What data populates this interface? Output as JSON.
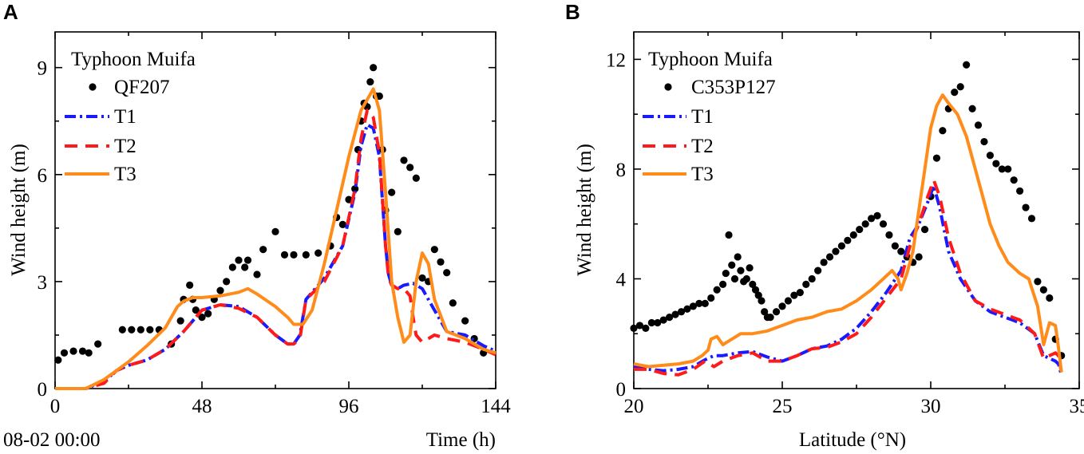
{
  "chart_data": [
    {
      "id": "A",
      "type": "line",
      "panel_label": "A",
      "legend_title": "Typhoon Muifa",
      "xlabel": "Time (h)",
      "ylabel": "Wind height (m)",
      "x_origin_label": "08-02 00:00",
      "xlim": [
        0,
        144
      ],
      "ylim": [
        0,
        10
      ],
      "xticks": [
        0,
        48,
        96,
        144
      ],
      "yticks": [
        0,
        3,
        6,
        9
      ],
      "legend_position": "top-left",
      "colors": {
        "obs": "#000000",
        "T1": "#1a1aff",
        "T2": "#ff1a1a",
        "T3": "#ff8c1a"
      },
      "observations": {
        "name": "QF207",
        "x": [
          1,
          3,
          6,
          9,
          11,
          14,
          22,
          25,
          28,
          31,
          34,
          38,
          41,
          42,
          44,
          45,
          46,
          48,
          50,
          52,
          54,
          56,
          58,
          60,
          62,
          63,
          66,
          68,
          72,
          75,
          78,
          82,
          86,
          90,
          92,
          94,
          96,
          98,
          99,
          100,
          101,
          102,
          103,
          104,
          105,
          106,
          107,
          108,
          110,
          112,
          114,
          116,
          118,
          120,
          122,
          124,
          126,
          128,
          130,
          134,
          137,
          140
        ],
        "y": [
          0.8,
          1.0,
          1.05,
          1.05,
          1.0,
          1.25,
          1.65,
          1.65,
          1.65,
          1.65,
          1.65,
          1.25,
          1.9,
          2.5,
          2.9,
          2.5,
          2.2,
          2.0,
          2.1,
          2.5,
          2.75,
          3.0,
          3.4,
          3.6,
          3.4,
          3.6,
          3.2,
          3.9,
          4.4,
          3.75,
          3.75,
          3.75,
          3.8,
          4.0,
          4.8,
          4.6,
          5.3,
          5.6,
          6.7,
          7.5,
          8.0,
          7.9,
          8.6,
          9.0,
          8.2,
          8.2,
          6.7,
          5.0,
          5.5,
          4.4,
          6.4,
          6.2,
          5.9,
          3.1,
          3.0,
          3.9,
          3.55,
          3.25,
          2.4,
          1.9,
          1.4,
          1.0
        ]
      },
      "series": [
        {
          "name": "T1",
          "style": "dash-dot",
          "x": [
            0,
            10,
            16,
            20,
            24,
            30,
            36,
            42,
            48,
            54,
            60,
            66,
            72,
            76,
            78,
            80,
            82,
            88,
            94,
            98,
            100,
            102,
            104,
            106,
            108,
            109,
            110,
            112,
            114,
            117,
            120,
            124,
            128,
            134,
            140,
            144
          ],
          "y": [
            0,
            0,
            0.2,
            0.5,
            0.65,
            0.8,
            1.1,
            1.6,
            2.2,
            2.35,
            2.3,
            2.0,
            1.5,
            1.25,
            1.25,
            1.5,
            2.5,
            3.1,
            4.0,
            5.5,
            6.8,
            7.4,
            7.3,
            6.5,
            4.0,
            3.2,
            2.9,
            2.8,
            2.9,
            2.95,
            2.8,
            2.2,
            1.6,
            1.5,
            1.2,
            1.05
          ]
        },
        {
          "name": "T2",
          "style": "dashed",
          "x": [
            0,
            10,
            16,
            20,
            24,
            30,
            36,
            42,
            48,
            54,
            60,
            66,
            72,
            76,
            78,
            80,
            82,
            88,
            94,
            98,
            100,
            102,
            104,
            106,
            108,
            109,
            110,
            112,
            114,
            116,
            117,
            118,
            120,
            124,
            128,
            134,
            140,
            144
          ],
          "y": [
            0,
            0,
            0.15,
            0.5,
            0.65,
            0.8,
            1.1,
            1.6,
            2.2,
            2.35,
            2.25,
            2.0,
            1.5,
            1.25,
            1.25,
            1.4,
            2.5,
            3.0,
            4.0,
            5.6,
            7.0,
            7.8,
            7.6,
            6.6,
            4.0,
            3.1,
            2.9,
            2.8,
            2.8,
            2.6,
            2.0,
            1.5,
            1.3,
            1.5,
            1.4,
            1.3,
            1.1,
            0.95
          ]
        },
        {
          "name": "T3",
          "style": "solid",
          "x": [
            0,
            10,
            16,
            20,
            24,
            30,
            36,
            40,
            42,
            45,
            48,
            54,
            60,
            63,
            66,
            72,
            76,
            78,
            81,
            84,
            88,
            92,
            96,
            100,
            104,
            106,
            108,
            110,
            112,
            114,
            116,
            118,
            120,
            122,
            124,
            128,
            134,
            140,
            144
          ],
          "y": [
            0,
            0,
            0.25,
            0.5,
            0.75,
            1.2,
            1.7,
            2.3,
            2.45,
            2.55,
            2.55,
            2.6,
            2.7,
            2.8,
            2.65,
            2.3,
            2.0,
            1.8,
            1.8,
            2.2,
            3.5,
            5.0,
            6.5,
            7.8,
            8.4,
            7.8,
            5.5,
            3.0,
            2.0,
            1.3,
            1.5,
            3.0,
            3.8,
            3.5,
            2.5,
            1.6,
            1.4,
            1.1,
            1.0
          ]
        }
      ]
    },
    {
      "id": "B",
      "type": "line",
      "panel_label": "B",
      "legend_title": "Typhoon Muifa",
      "xlabel": "Latitude (°N)",
      "ylabel": "Wind height (m)",
      "xlim": [
        20,
        35
      ],
      "ylim": [
        0,
        13
      ],
      "xticks": [
        20,
        25,
        30,
        35
      ],
      "yticks": [
        0,
        4,
        8,
        12
      ],
      "legend_position": "top-left",
      "colors": {
        "obs": "#000000",
        "T1": "#1a1aff",
        "T2": "#ff1a1a",
        "T3": "#ff8c1a"
      },
      "observations": {
        "name": "C353P127",
        "x": [
          20.0,
          20.2,
          20.4,
          20.6,
          20.8,
          21.0,
          21.2,
          21.4,
          21.6,
          21.8,
          22.0,
          22.2,
          22.4,
          22.6,
          22.8,
          23.0,
          23.1,
          23.2,
          23.3,
          23.4,
          23.5,
          23.6,
          23.7,
          23.8,
          23.9,
          24.0,
          24.1,
          24.2,
          24.3,
          24.4,
          24.5,
          24.6,
          24.8,
          25.0,
          25.2,
          25.4,
          25.6,
          25.8,
          26.0,
          26.2,
          26.4,
          26.6,
          26.8,
          27.0,
          27.2,
          27.4,
          27.6,
          27.8,
          28.0,
          28.2,
          28.4,
          28.6,
          28.8,
          29.0,
          29.2,
          29.4,
          29.6,
          29.8,
          30.0,
          30.2,
          30.4,
          30.6,
          30.8,
          31.0,
          31.2,
          31.4,
          31.6,
          31.8,
          32.0,
          32.2,
          32.4,
          32.6,
          32.8,
          33.0,
          33.2,
          33.4,
          33.6,
          33.8,
          34.0,
          34.2,
          34.4
        ],
        "y": [
          2.2,
          2.3,
          2.2,
          2.4,
          2.4,
          2.5,
          2.6,
          2.7,
          2.8,
          2.9,
          3.0,
          3.1,
          3.1,
          3.3,
          3.6,
          3.8,
          4.2,
          5.6,
          4.5,
          4.0,
          4.8,
          4.3,
          3.9,
          4.0,
          4.4,
          3.8,
          3.6,
          3.4,
          3.2,
          2.8,
          2.6,
          2.6,
          2.8,
          3.0,
          3.2,
          3.4,
          3.5,
          3.8,
          4.0,
          4.3,
          4.6,
          4.8,
          5.0,
          5.2,
          5.4,
          5.6,
          5.8,
          6.0,
          6.2,
          6.3,
          6.0,
          5.6,
          5.2,
          5.0,
          4.8,
          4.6,
          4.8,
          5.8,
          7.0,
          8.4,
          9.4,
          10.2,
          10.8,
          11.0,
          11.8,
          10.2,
          9.6,
          9.0,
          8.5,
          8.2,
          8.0,
          8.0,
          7.6,
          7.2,
          6.6,
          6.2,
          3.9,
          3.6,
          3.3,
          1.8,
          1.2
        ]
      },
      "series": [
        {
          "name": "T1",
          "style": "dash-dot",
          "x": [
            20.0,
            20.5,
            21.0,
            21.5,
            22.0,
            22.4,
            22.7,
            23.0,
            23.5,
            24.0,
            24.5,
            25.0,
            25.5,
            26.0,
            26.5,
            27.0,
            27.5,
            28.0,
            28.5,
            29.0,
            29.3,
            29.6,
            29.9,
            30.1,
            30.3,
            30.6,
            31.0,
            31.5,
            32.0,
            32.5,
            33.0,
            33.5,
            33.8,
            34.0,
            34.2,
            34.3,
            34.4
          ],
          "y": [
            0.8,
            0.7,
            0.65,
            0.7,
            0.8,
            1.05,
            1.2,
            1.2,
            1.3,
            1.35,
            1.15,
            1.0,
            1.2,
            1.45,
            1.55,
            1.8,
            2.2,
            2.8,
            3.5,
            4.3,
            5.5,
            6.0,
            6.8,
            7.4,
            6.6,
            5.0,
            4.0,
            3.2,
            2.8,
            2.6,
            2.4,
            2.0,
            1.2,
            1.1,
            1.0,
            0.9,
            0.5
          ]
        },
        {
          "name": "T2",
          "style": "dashed",
          "x": [
            20.0,
            20.5,
            21.0,
            21.5,
            22.0,
            22.4,
            22.7,
            23.0,
            23.5,
            24.0,
            24.5,
            25.0,
            25.5,
            26.0,
            26.5,
            27.0,
            27.5,
            28.0,
            28.5,
            29.0,
            29.3,
            29.6,
            29.9,
            30.1,
            30.3,
            30.6,
            31.0,
            31.5,
            32.0,
            32.5,
            33.0,
            33.5,
            33.8,
            34.0,
            34.2,
            34.3,
            34.4
          ],
          "y": [
            0.7,
            0.7,
            0.55,
            0.5,
            0.7,
            1.0,
            0.8,
            1.0,
            1.2,
            1.3,
            1.0,
            1.0,
            1.2,
            1.45,
            1.5,
            1.7,
            2.0,
            2.6,
            3.3,
            4.0,
            5.2,
            6.0,
            7.0,
            7.6,
            7.0,
            5.5,
            4.2,
            3.2,
            2.9,
            2.7,
            2.5,
            2.0,
            1.1,
            1.2,
            1.3,
            1.2,
            0.6
          ]
        },
        {
          "name": "T3",
          "style": "solid",
          "x": [
            20.0,
            20.5,
            21.0,
            21.5,
            22.0,
            22.3,
            22.5,
            22.6,
            22.8,
            23.0,
            23.3,
            23.6,
            24.0,
            24.5,
            25.0,
            25.5,
            26.0,
            26.5,
            27.0,
            27.5,
            28.0,
            28.4,
            28.7,
            28.9,
            29.0,
            29.2,
            29.4,
            29.6,
            29.8,
            30.0,
            30.2,
            30.4,
            30.6,
            30.9,
            31.2,
            31.5,
            31.8,
            32.0,
            32.3,
            32.6,
            33.0,
            33.3,
            33.6,
            33.8,
            34.0,
            34.2,
            34.3,
            34.4
          ],
          "y": [
            0.9,
            0.8,
            0.85,
            0.9,
            1.0,
            1.2,
            1.4,
            1.8,
            1.9,
            1.6,
            1.8,
            2.0,
            2.0,
            2.1,
            2.3,
            2.5,
            2.6,
            2.8,
            2.9,
            3.2,
            3.6,
            4.0,
            4.3,
            4.0,
            3.6,
            4.2,
            5.0,
            6.5,
            8.0,
            9.5,
            10.3,
            10.7,
            10.4,
            10.0,
            9.2,
            8.0,
            6.8,
            6.0,
            5.2,
            4.6,
            4.2,
            4.0,
            3.0,
            1.6,
            2.4,
            2.3,
            1.5,
            0.6
          ]
        }
      ]
    }
  ]
}
